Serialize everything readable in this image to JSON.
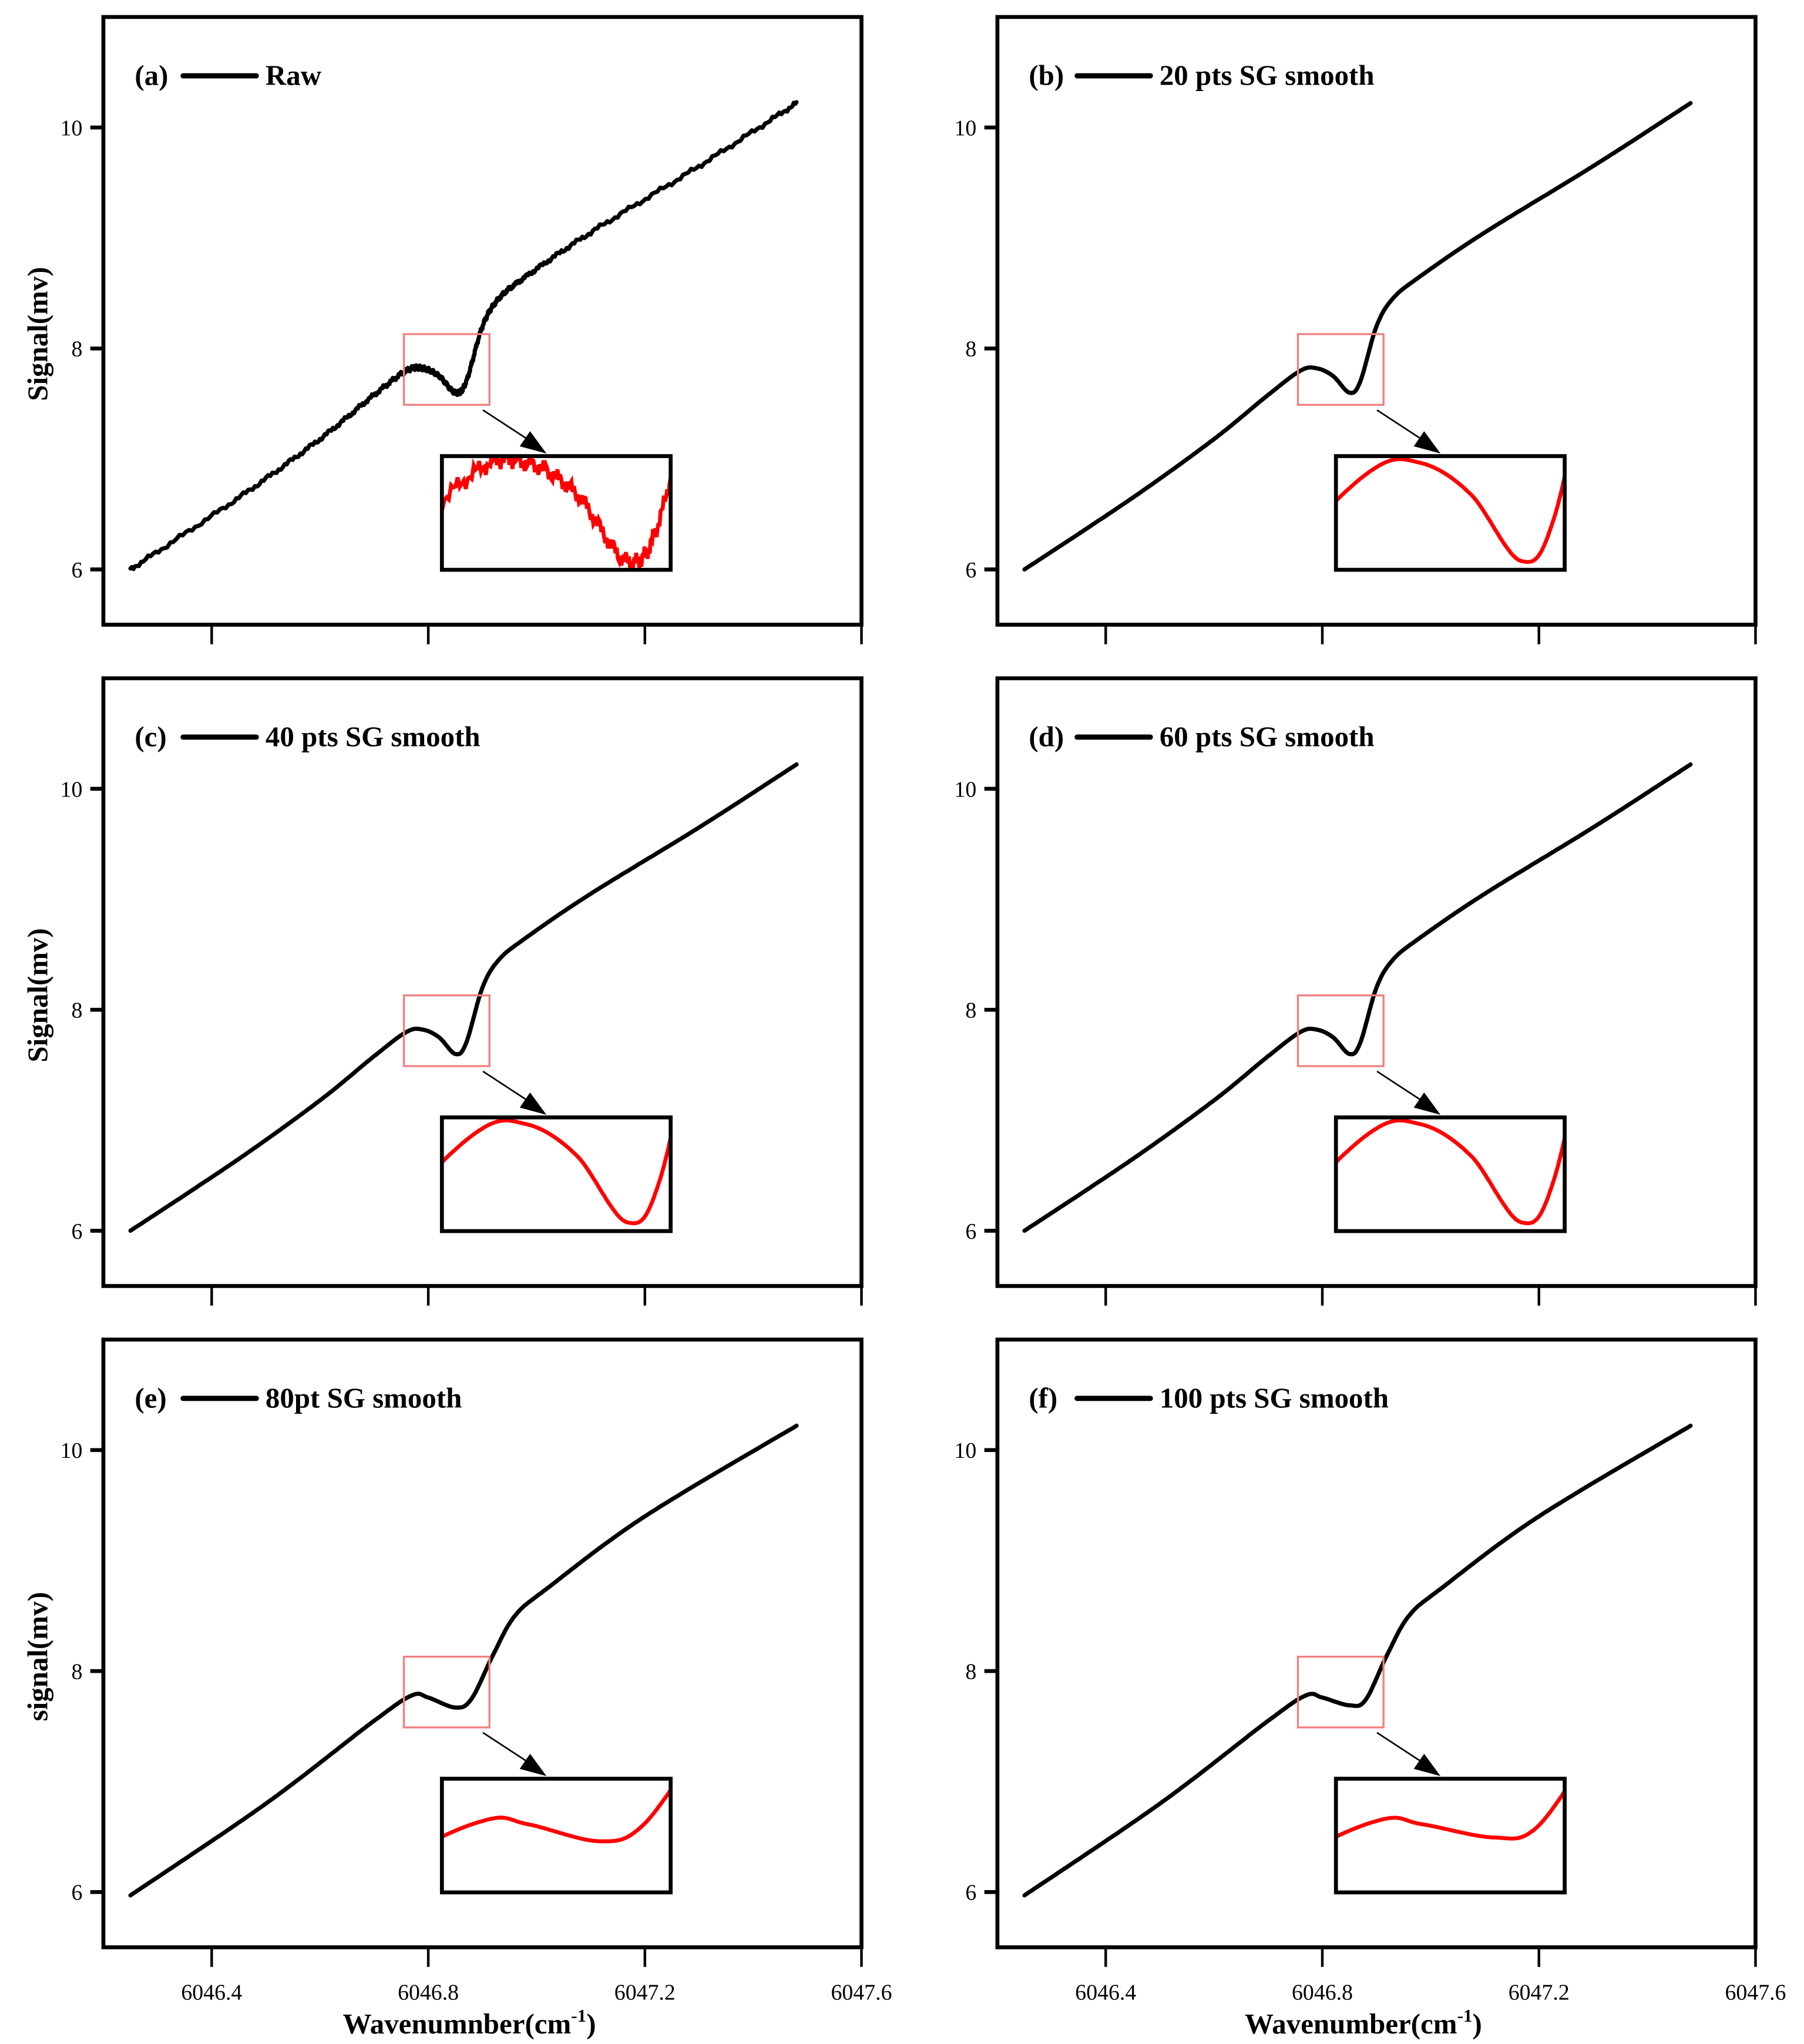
{
  "chart_data": [
    {
      "type": "line",
      "panel": "(a)",
      "legend": "Raw",
      "ylabel": "Signal(mv)",
      "xlabel": "",
      "xlim": [
        6046.2,
        6047.6
      ],
      "ylim": [
        5.5,
        11.0
      ],
      "xticks": [
        6046.4,
        6046.8,
        6047.2,
        6047.6
      ],
      "yticks": [
        6,
        8,
        10
      ],
      "show_xtick_labels": false,
      "noisy": true,
      "x": [
        6046.25,
        6046.45,
        6046.6,
        6046.7,
        6046.76,
        6046.79,
        6046.82,
        6046.85,
        6046.87,
        6046.9,
        6046.93,
        6046.98,
        6047.1,
        6047.3,
        6047.48
      ],
      "y": [
        6.0,
        6.65,
        7.18,
        7.58,
        7.8,
        7.82,
        7.75,
        7.6,
        7.7,
        8.2,
        8.45,
        8.65,
        9.05,
        9.65,
        10.22
      ],
      "zoom_box": {
        "xlim": [
          6046.755,
          6046.913
        ],
        "ylim": [
          7.49,
          8.13
        ]
      },
      "inset": {
        "xlim": [
          6046.74,
          6046.876
        ],
        "ylim": [
          7.58,
          7.835
        ]
      },
      "line_color": "#000000",
      "inset_color": "#ff0000",
      "zoom_box_color": "#f08080"
    },
    {
      "type": "line",
      "panel": "(b)",
      "legend": "20 pts SG smooth",
      "ylabel": "",
      "xlabel": "",
      "xlim": [
        6046.2,
        6047.6
      ],
      "ylim": [
        5.5,
        11.0
      ],
      "xticks": [
        6046.4,
        6046.8,
        6047.2,
        6047.6
      ],
      "yticks": [
        6,
        8,
        10
      ],
      "show_xtick_labels": false,
      "noisy": false,
      "x": [
        6046.25,
        6046.45,
        6046.6,
        6046.7,
        6046.76,
        6046.79,
        6046.82,
        6046.85,
        6046.87,
        6046.9,
        6046.93,
        6046.98,
        6047.1,
        6047.3,
        6047.48
      ],
      "y": [
        6.0,
        6.65,
        7.18,
        7.58,
        7.8,
        7.82,
        7.75,
        7.6,
        7.7,
        8.2,
        8.45,
        8.65,
        9.05,
        9.65,
        10.22
      ],
      "zoom_box": {
        "xlim": [
          6046.755,
          6046.913
        ],
        "ylim": [
          7.49,
          8.13
        ]
      },
      "inset": {
        "xlim": [
          6046.74,
          6046.876
        ],
        "ylim": [
          7.58,
          7.835
        ]
      },
      "line_color": "#000000",
      "inset_color": "#ff0000",
      "zoom_box_color": "#f08080"
    },
    {
      "type": "line",
      "panel": "(c)",
      "legend": "40 pts SG smooth",
      "ylabel": "Signal(mv)",
      "xlabel": "",
      "xlim": [
        6046.2,
        6047.6
      ],
      "ylim": [
        5.5,
        11.0
      ],
      "xticks": [
        6046.4,
        6046.8,
        6047.2,
        6047.6
      ],
      "yticks": [
        6,
        8,
        10
      ],
      "show_xtick_labels": false,
      "noisy": false,
      "x": [
        6046.25,
        6046.45,
        6046.6,
        6046.7,
        6046.76,
        6046.79,
        6046.82,
        6046.85,
        6046.87,
        6046.9,
        6046.93,
        6046.98,
        6047.1,
        6047.3,
        6047.48
      ],
      "y": [
        6.0,
        6.65,
        7.18,
        7.58,
        7.8,
        7.82,
        7.75,
        7.6,
        7.7,
        8.2,
        8.45,
        8.65,
        9.05,
        9.65,
        10.22
      ],
      "zoom_box": {
        "xlim": [
          6046.755,
          6046.913
        ],
        "ylim": [
          7.49,
          8.13
        ]
      },
      "inset": {
        "xlim": [
          6046.74,
          6046.876
        ],
        "ylim": [
          7.58,
          7.835
        ]
      },
      "line_color": "#000000",
      "inset_color": "#ff0000",
      "zoom_box_color": "#f08080"
    },
    {
      "type": "line",
      "panel": "(d)",
      "legend": "60 pts SG smooth",
      "ylabel": "",
      "xlabel": "",
      "xlim": [
        6046.2,
        6047.6
      ],
      "ylim": [
        5.5,
        11.0
      ],
      "xticks": [
        6046.4,
        6046.8,
        6047.2,
        6047.6
      ],
      "yticks": [
        6,
        8,
        10
      ],
      "show_xtick_labels": false,
      "noisy": false,
      "x": [
        6046.25,
        6046.45,
        6046.6,
        6046.7,
        6046.76,
        6046.79,
        6046.82,
        6046.85,
        6046.87,
        6046.9,
        6046.93,
        6046.98,
        6047.1,
        6047.3,
        6047.48
      ],
      "y": [
        6.0,
        6.65,
        7.18,
        7.58,
        7.8,
        7.82,
        7.75,
        7.6,
        7.7,
        8.2,
        8.45,
        8.65,
        9.05,
        9.65,
        10.22
      ],
      "zoom_box": {
        "xlim": [
          6046.755,
          6046.913
        ],
        "ylim": [
          7.49,
          8.13
        ]
      },
      "inset": {
        "xlim": [
          6046.74,
          6046.876
        ],
        "ylim": [
          7.58,
          7.835
        ]
      },
      "line_color": "#000000",
      "inset_color": "#ff0000",
      "zoom_box_color": "#f08080"
    },
    {
      "type": "line",
      "panel": "(e)",
      "legend": "80pt SG smooth",
      "ylabel": "signal(mv)",
      "xlabel": "Wavenumnber(cm",
      "xlabel_sup": "-1",
      "xlabel_end": ")",
      "xlim": [
        6046.2,
        6047.6
      ],
      "ylim": [
        5.5,
        11.0
      ],
      "xticks": [
        6046.4,
        6046.8,
        6047.2,
        6047.6
      ],
      "yticks": [
        6,
        8,
        10
      ],
      "show_xtick_labels": true,
      "noisy": false,
      "x": [
        6046.25,
        6046.5,
        6046.7,
        6046.77,
        6046.8,
        6046.85,
        6046.88,
        6046.92,
        6046.96,
        6047.02,
        6047.2,
        6047.48
      ],
      "y": [
        5.97,
        6.8,
        7.55,
        7.78,
        7.76,
        7.67,
        7.75,
        8.15,
        8.5,
        8.75,
        9.4,
        10.22
      ],
      "zoom_box": {
        "xlim": [
          6046.755,
          6046.913
        ],
        "ylim": [
          7.49,
          8.13
        ]
      },
      "inset": {
        "xlim": [
          6046.74,
          6046.9
        ],
        "ylim": [
          7.4,
          8.0
        ]
      },
      "line_color": "#000000",
      "inset_color": "#ff0000",
      "zoom_box_color": "#f08080"
    },
    {
      "type": "line",
      "panel": "(f)",
      "legend": "100 pts SG smooth",
      "ylabel": "",
      "xlabel": "Wavenumber(cm",
      "xlabel_sup": "-1",
      "xlabel_end": ")",
      "xlim": [
        6046.2,
        6047.6
      ],
      "ylim": [
        5.5,
        11.0
      ],
      "xticks": [
        6046.4,
        6046.8,
        6047.2,
        6047.6
      ],
      "yticks": [
        6,
        8,
        10
      ],
      "show_xtick_labels": true,
      "noisy": false,
      "x": [
        6046.25,
        6046.5,
        6046.7,
        6046.77,
        6046.8,
        6046.85,
        6046.88,
        6046.92,
        6046.96,
        6047.02,
        6047.2,
        6047.48
      ],
      "y": [
        5.97,
        6.8,
        7.55,
        7.78,
        7.76,
        7.69,
        7.74,
        8.15,
        8.5,
        8.75,
        9.4,
        10.22
      ],
      "zoom_box": {
        "xlim": [
          6046.755,
          6046.913
        ],
        "ylim": [
          7.49,
          8.13
        ]
      },
      "inset": {
        "xlim": [
          6046.74,
          6046.9
        ],
        "ylim": [
          7.4,
          8.0
        ]
      },
      "line_color": "#000000",
      "inset_color": "#ff0000",
      "zoom_box_color": "#f08080"
    }
  ]
}
